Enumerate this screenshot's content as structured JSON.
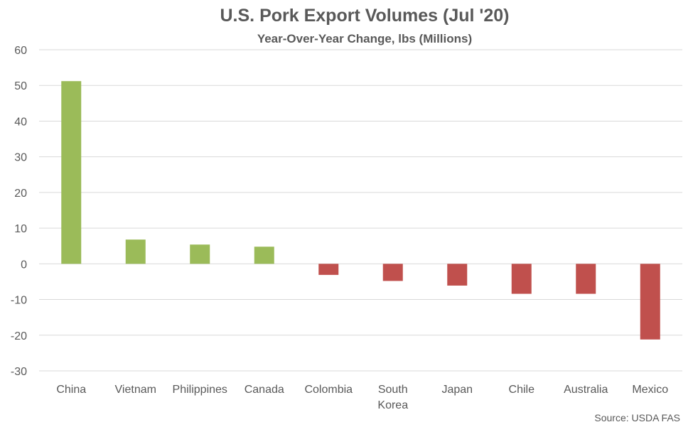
{
  "chart_data": {
    "type": "bar",
    "title": "U.S. Pork Export Volumes (Jul '20)",
    "subtitle": "Year-Over-Year Change, lbs (Millions)",
    "categories": [
      [
        "China"
      ],
      [
        "Vietnam"
      ],
      [
        "Philippines"
      ],
      [
        "Canada"
      ],
      [
        "Colombia"
      ],
      [
        "South",
        "Korea"
      ],
      [
        "Japan"
      ],
      [
        "Chile"
      ],
      [
        "Australia"
      ],
      [
        "Mexico"
      ]
    ],
    "values": [
      51.2,
      6.8,
      5.4,
      4.8,
      -3.1,
      -4.8,
      -6.1,
      -8.4,
      -8.4,
      -21.2
    ],
    "ylim": [
      -30,
      60
    ],
    "yticks": [
      -30,
      -20,
      -10,
      0,
      10,
      20,
      30,
      40,
      50,
      60
    ],
    "grid": true,
    "legend": "none",
    "colors": {
      "positive": "#9bbb59",
      "negative": "#c0504d",
      "grid": "#d9d9d9",
      "text": "#595959"
    },
    "source": "Source: USDA FAS"
  }
}
